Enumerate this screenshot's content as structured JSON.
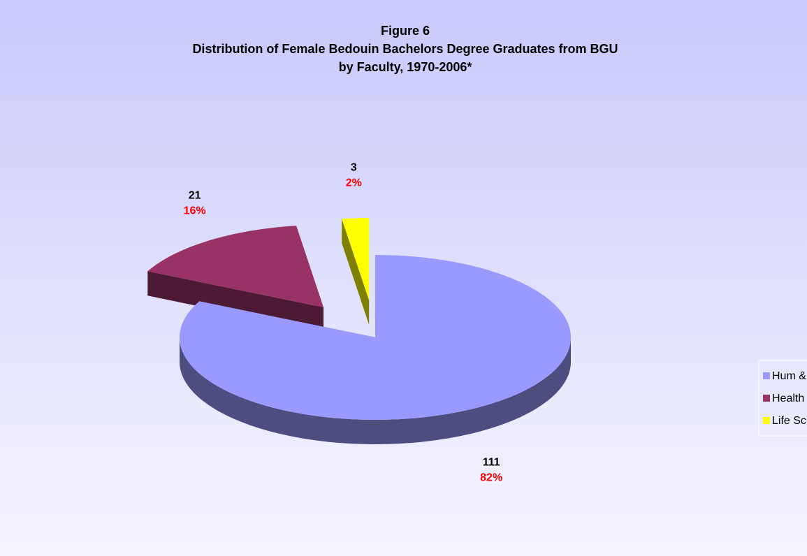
{
  "chart_data": {
    "type": "pie",
    "title": [
      "Figure 6",
      "Distribution of Female Bedouin Bachelors Degree Graduates from BGU",
      "by Faculty, 1970-2006*"
    ],
    "categories": [
      "Hum & Soc Sci",
      "Health Sci",
      "Life Sciences"
    ],
    "values": [
      111,
      21,
      3
    ],
    "percent_labels": [
      "82%",
      "16%",
      "2%"
    ],
    "colors": [
      "#9999ff",
      "#993366",
      "#ffff00"
    ],
    "exploded": [
      false,
      true,
      true
    ],
    "legend": "right"
  }
}
